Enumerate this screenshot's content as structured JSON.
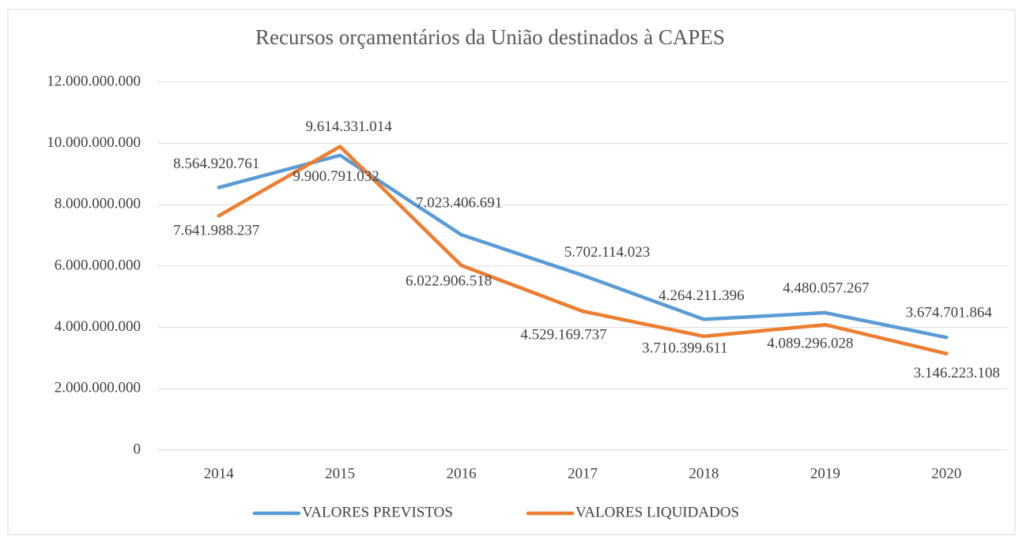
{
  "chart_data": {
    "type": "line",
    "title": "Recursos orçamentários da União destinados à CAPES",
    "categories": [
      "2014",
      "2015",
      "2016",
      "2017",
      "2018",
      "2019",
      "2020"
    ],
    "series": [
      {
        "name": "VALORES PREVISTOS",
        "color": "#5b9bd5",
        "values": [
          8564920761,
          9614331014,
          7023406691,
          5702114023,
          4264211396,
          4480057267,
          3674701864
        ],
        "value_labels": [
          "8.564.920.761",
          "9.614.331.014",
          "7.023.406.691",
          "5.702.114.023",
          "4.264.211.396",
          "4.480.057.267",
          "3.674.701.864"
        ]
      },
      {
        "name": "VALORES LIQUIDADOS",
        "color": "#ed7d31",
        "values": [
          7641988237,
          9900791032,
          6022906518,
          4529169737,
          3710399611,
          4089296028,
          3146223108
        ],
        "value_labels": [
          "7.641.988.237",
          "9.900.791.032",
          "6.022.906.518",
          "4.529.169.737",
          "3.710.399.611",
          "4.089.296.028",
          "3.146.223.108"
        ]
      }
    ],
    "ylim": [
      0,
      12000000000
    ],
    "yticks": [
      0,
      {
        "value": 2000000000,
        "label": "2.000.000.000"
      },
      {
        "value": 4000000000,
        "label": "4.000.000.000"
      },
      {
        "value": 6000000000,
        "label": "6.000.000.000"
      },
      {
        "value": 8000000000,
        "label": "8.000.000.000"
      },
      {
        "value": 10000000000,
        "label": "10.000.000.000"
      },
      {
        "value": 12000000000,
        "label": "12.000.000.000"
      }
    ],
    "grid": true,
    "legend": "bottom"
  }
}
